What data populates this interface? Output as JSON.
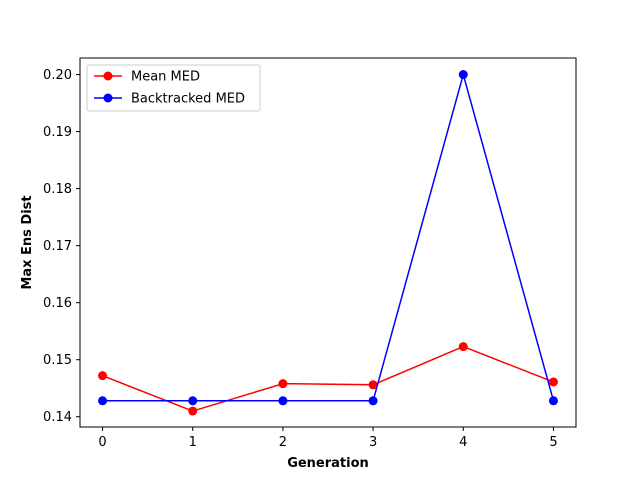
{
  "chart_data": {
    "type": "line",
    "title": "",
    "xlabel": "Generation",
    "ylabel": "Max Ens Dist",
    "x": [
      0,
      1,
      2,
      3,
      4,
      5
    ],
    "xticks": [
      "0",
      "1",
      "2",
      "3",
      "4",
      "5"
    ],
    "yticks": [
      "0.14",
      "0.15",
      "0.16",
      "0.17",
      "0.18",
      "0.19",
      "0.20"
    ],
    "xlim": [
      -0.25,
      5.25
    ],
    "ylim": [
      0.1382,
      0.2029
    ],
    "grid": false,
    "legend_position": "upper-left",
    "series": [
      {
        "name": "Mean MED",
        "color": "#ff0000",
        "marker": "circle",
        "values": [
          0.1472,
          0.141,
          0.1458,
          0.1456,
          0.1523,
          0.1461
        ]
      },
      {
        "name": "Backtracked MED",
        "color": "#0000ff",
        "marker": "circle",
        "values": [
          0.1428,
          0.1428,
          0.1428,
          0.1428,
          0.2,
          0.1428
        ]
      }
    ]
  }
}
